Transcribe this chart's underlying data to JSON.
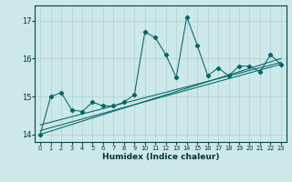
{
  "xlabel": "Humidex (Indice chaleur)",
  "ylabel": "",
  "background_color": "#cde8e8",
  "grid_color": "#b0d0d0",
  "line_color": "#006666",
  "xlim": [
    -0.5,
    23.5
  ],
  "ylim": [
    13.8,
    17.4
  ],
  "yticks": [
    14,
    15,
    16,
    17
  ],
  "xticks": [
    0,
    1,
    2,
    3,
    4,
    5,
    6,
    7,
    8,
    9,
    10,
    11,
    12,
    13,
    14,
    15,
    16,
    17,
    18,
    19,
    20,
    21,
    22,
    23
  ],
  "series": [
    [
      0,
      14.0
    ],
    [
      1,
      15.0
    ],
    [
      2,
      15.1
    ],
    [
      3,
      14.65
    ],
    [
      4,
      14.6
    ],
    [
      5,
      14.85
    ],
    [
      6,
      14.75
    ],
    [
      7,
      14.75
    ],
    [
      8,
      14.85
    ],
    [
      9,
      15.05
    ],
    [
      10,
      16.7
    ],
    [
      11,
      16.55
    ],
    [
      12,
      16.1
    ],
    [
      13,
      15.5
    ],
    [
      14,
      17.1
    ],
    [
      15,
      16.35
    ],
    [
      16,
      15.55
    ],
    [
      17,
      15.75
    ],
    [
      18,
      15.55
    ],
    [
      19,
      15.8
    ],
    [
      20,
      15.8
    ],
    [
      21,
      15.65
    ],
    [
      22,
      16.1
    ],
    [
      23,
      15.85
    ]
  ],
  "trend_lines": [
    {
      "x0": 0,
      "y0": 14.0,
      "x1": 23,
      "y1": 16.0
    },
    {
      "x0": 0,
      "y0": 14.1,
      "x1": 23,
      "y1": 15.85
    },
    {
      "x0": 0,
      "y0": 14.25,
      "x1": 23,
      "y1": 15.9
    }
  ]
}
